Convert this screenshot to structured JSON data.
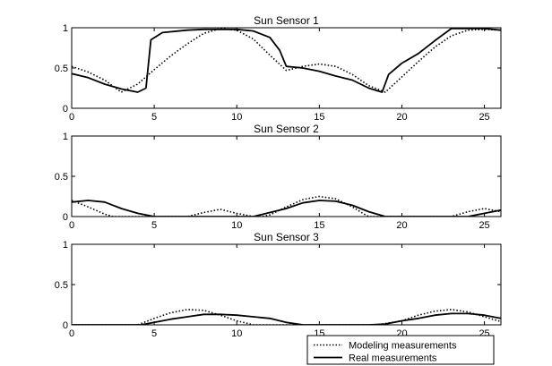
{
  "chart_data": [
    {
      "type": "line",
      "title": "Sun Sensor 1",
      "xlim": [
        0,
        26
      ],
      "ylim": [
        0,
        1
      ],
      "xticks": [
        0,
        5,
        10,
        15,
        20,
        25
      ],
      "yticks": [
        0,
        0.5,
        1
      ],
      "xtick_labels": [
        "0",
        "5",
        "10",
        "15",
        "20",
        "25"
      ],
      "ytick_labels": [
        "0",
        "0.5",
        "1"
      ],
      "grid": false,
      "series": [
        {
          "name": "Modeling measurements",
          "style": "dotted",
          "x": [
            0,
            1,
            2,
            3,
            4,
            5,
            6,
            7,
            8,
            9,
            10,
            11,
            12,
            13,
            14,
            15,
            16,
            17,
            18,
            19,
            20,
            21,
            22,
            23,
            24,
            25,
            26
          ],
          "y": [
            0.52,
            0.45,
            0.35,
            0.2,
            0.3,
            0.48,
            0.65,
            0.8,
            0.93,
            0.99,
            0.97,
            0.86,
            0.66,
            0.47,
            0.52,
            0.55,
            0.52,
            0.42,
            0.28,
            0.2,
            0.39,
            0.58,
            0.76,
            0.9,
            0.97,
            0.98,
            0.97
          ]
        },
        {
          "name": "Real measurements",
          "style": "solid",
          "x": [
            0,
            1,
            2,
            3,
            4,
            4.5,
            4.8,
            5.5,
            7,
            8,
            9,
            10,
            11,
            12,
            12.6,
            13,
            14,
            15,
            16,
            17,
            18,
            18.8,
            19.2,
            20,
            21,
            22,
            23,
            24,
            25,
            26
          ],
          "y": [
            0.43,
            0.38,
            0.3,
            0.24,
            0.2,
            0.25,
            0.85,
            0.94,
            0.97,
            0.98,
            0.98,
            0.98,
            0.96,
            0.88,
            0.72,
            0.52,
            0.5,
            0.46,
            0.4,
            0.35,
            0.25,
            0.2,
            0.42,
            0.56,
            0.68,
            0.84,
            0.99,
            0.99,
            0.99,
            0.97
          ]
        }
      ]
    },
    {
      "type": "line",
      "title": "Sun Sensor 2",
      "xlim": [
        0,
        26
      ],
      "ylim": [
        0,
        1
      ],
      "xticks": [
        0,
        5,
        10,
        15,
        20,
        25
      ],
      "yticks": [
        0,
        0.5,
        1
      ],
      "xtick_labels": [
        "0",
        "5",
        "10",
        "15",
        "20",
        "25"
      ],
      "ytick_labels": [
        "0",
        "0.5",
        "1"
      ],
      "grid": false,
      "series": [
        {
          "name": "Modeling measurements",
          "style": "dotted",
          "x": [
            0,
            1,
            2,
            2.5,
            7,
            8,
            9,
            10,
            11,
            11.5,
            12,
            13,
            14,
            15,
            16,
            17,
            17.8,
            18,
            23,
            24,
            25,
            26
          ],
          "y": [
            0.2,
            0.12,
            0.03,
            0,
            0,
            0.05,
            0.09,
            0.04,
            0,
            0,
            0.02,
            0.12,
            0.21,
            0.25,
            0.22,
            0.12,
            0.02,
            0,
            0,
            0.06,
            0.1,
            0.06
          ]
        },
        {
          "name": "Real measurements",
          "style": "solid",
          "x": [
            0,
            1,
            2,
            3,
            4,
            5,
            11,
            12,
            13,
            14,
            15,
            16,
            17,
            18,
            19,
            24,
            25,
            26
          ],
          "y": [
            0.18,
            0.2,
            0.18,
            0.1,
            0.04,
            0,
            0,
            0.05,
            0.1,
            0.17,
            0.2,
            0.19,
            0.14,
            0.06,
            0,
            0,
            0.04,
            0.08
          ]
        }
      ]
    },
    {
      "type": "line",
      "title": "Sun Sensor 3",
      "xlim": [
        0,
        26
      ],
      "ylim": [
        0,
        1
      ],
      "xticks": [
        0,
        5,
        10,
        15,
        20,
        25
      ],
      "yticks": [
        0,
        0.5,
        1
      ],
      "xtick_labels": [
        "0",
        "5",
        "10",
        "15",
        "20",
        "25"
      ],
      "ytick_labels": [
        "0",
        "0.5",
        "1"
      ],
      "grid": false,
      "series": [
        {
          "name": "Modeling measurements",
          "style": "dotted",
          "x": [
            0,
            4,
            5,
            6,
            7,
            8,
            9,
            10,
            11,
            18.5,
            20,
            21,
            22,
            23,
            24,
            25,
            26
          ],
          "y": [
            0,
            0,
            0.08,
            0.15,
            0.19,
            0.18,
            0.12,
            0.05,
            0,
            0,
            0.05,
            0.12,
            0.17,
            0.19,
            0.16,
            0.1,
            0.04
          ]
        },
        {
          "name": "Real measurements",
          "style": "solid",
          "x": [
            0,
            4.2,
            5,
            6,
            7,
            8,
            9,
            10,
            11,
            12,
            13,
            14,
            18,
            19,
            20,
            21,
            22,
            23,
            24,
            25,
            26
          ],
          "y": [
            0,
            0,
            0.03,
            0.07,
            0.1,
            0.13,
            0.13,
            0.12,
            0.1,
            0.08,
            0.03,
            0,
            0,
            0.01,
            0.05,
            0.08,
            0.12,
            0.14,
            0.14,
            0.12,
            0.08
          ]
        }
      ]
    }
  ],
  "legend": {
    "placement": "bottom-right",
    "entries": [
      {
        "label": "Modeling measurements",
        "style": "dotted"
      },
      {
        "label": "Real measurements",
        "style": "solid"
      }
    ]
  }
}
